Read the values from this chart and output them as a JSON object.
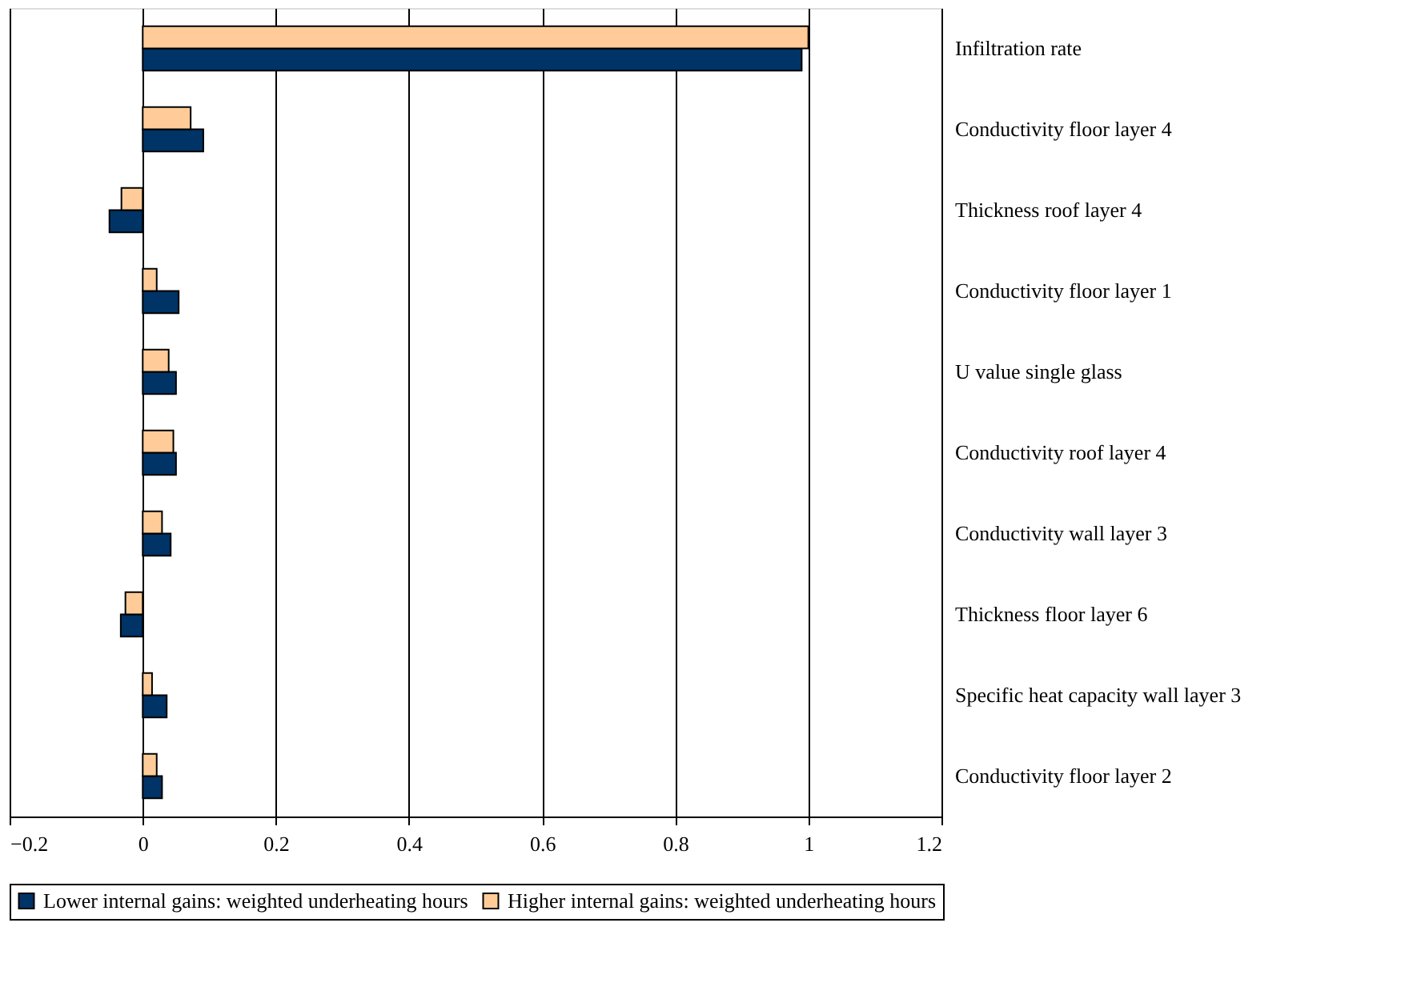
{
  "chart_data": {
    "type": "bar",
    "orientation": "horizontal",
    "categories": [
      "Infiltration rate",
      "Conductivity floor layer 4",
      "Thickness roof layer 4",
      "Conductivity floor layer 1",
      "U value single glass",
      "Conductivity roof layer 4",
      "Conductivity wall layer 3",
      "Thickness floor layer 6",
      "Specific heat capacity wall layer 3",
      "Conductivity floor layer 2"
    ],
    "series": [
      {
        "name": "Lower internal gains: weighted underheating hours",
        "color": "#003366",
        "values": [
          0.99,
          0.091,
          -0.05,
          0.054,
          0.05,
          0.05,
          0.042,
          -0.033,
          0.036,
          0.029
        ]
      },
      {
        "name": "Higher internal gains: weighted underheating hours",
        "color": "#ffcc99",
        "values": [
          1.0,
          0.072,
          -0.032,
          0.021,
          0.039,
          0.046,
          0.029,
          -0.026,
          0.014,
          0.021
        ]
      }
    ],
    "xlim": [
      -0.2,
      1.2
    ],
    "xticks": [
      -0.2,
      0,
      0.2,
      0.4,
      0.6,
      0.8,
      1,
      1.2
    ],
    "grid": "x",
    "legend": "bottom"
  }
}
